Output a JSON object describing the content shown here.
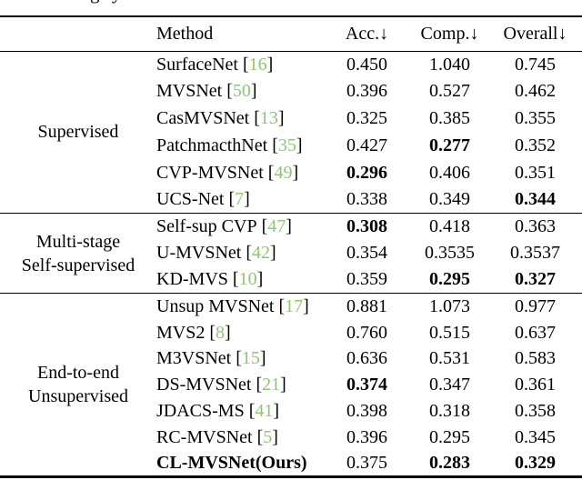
{
  "caption_fragment": {
    "char1": "g",
    "char2": "y"
  },
  "colors": {
    "citation_green": "#8fc575",
    "text_black": "#000000",
    "background": "#ffffff"
  },
  "table": {
    "symbols": {
      "bracket_open": "[",
      "bracket_close": "]"
    },
    "headers": {
      "method": "Method",
      "acc": "Acc.↓",
      "comp": "Comp.↓",
      "overall": "Overall↓"
    },
    "groups": [
      {
        "label_lines": [
          "Supervised"
        ],
        "rows": [
          {
            "method": "SurfaceNet",
            "cite": "16",
            "acc": "0.450",
            "comp": "1.040",
            "overall": "0.745"
          },
          {
            "method": "MVSNet",
            "cite": "50",
            "acc": "0.396",
            "comp": "0.527",
            "overall": "0.462"
          },
          {
            "method": "CasMVSNet",
            "cite": "13",
            "acc": "0.325",
            "comp": "0.385",
            "overall": "0.355"
          },
          {
            "method": "PatchmacthNet",
            "cite": "35",
            "acc": "0.427",
            "comp": "0.277",
            "overall": "0.352"
          },
          {
            "method": "CVP-MVSNet",
            "cite": "49",
            "acc": "0.296",
            "comp": "0.406",
            "overall": "0.351"
          },
          {
            "method": "UCS-Net",
            "cite": "7",
            "acc": "0.338",
            "comp": "0.349",
            "overall": "0.344"
          }
        ]
      },
      {
        "label_lines": [
          "Multi-stage",
          "Self-supervised"
        ],
        "rows": [
          {
            "method": "Self-sup CVP",
            "cite": "47",
            "acc": "0.308",
            "comp": "0.418",
            "overall": "0.363"
          },
          {
            "method": "U-MVSNet",
            "cite": "42",
            "acc": "0.354",
            "comp": "0.3535",
            "overall": "0.3537"
          },
          {
            "method": "KD-MVS",
            "cite": "10",
            "acc": "0.359",
            "comp": "0.295",
            "overall": "0.327"
          }
        ]
      },
      {
        "label_lines": [
          "End-to-end",
          "Unsupervised"
        ],
        "rows": [
          {
            "method": "Unsup MVSNet",
            "cite": "17",
            "acc": "0.881",
            "comp": "1.073",
            "overall": "0.977"
          },
          {
            "method": "MVS2",
            "cite": "8",
            "acc": "0.760",
            "comp": "0.515",
            "overall": "0.637"
          },
          {
            "method": "M3VSNet",
            "cite": "15",
            "acc": "0.636",
            "comp": "0.531",
            "overall": "0.583"
          },
          {
            "method": "DS-MVSNet",
            "cite": "21",
            "acc": "0.374",
            "comp": "0.347",
            "overall": "0.361"
          },
          {
            "method": "JDACS-MS",
            "cite": "41",
            "acc": "0.398",
            "comp": "0.318",
            "overall": "0.358"
          },
          {
            "method": "RC-MVSNet",
            "cite": "5",
            "acc": "0.396",
            "comp": "0.295",
            "overall": "0.345"
          },
          {
            "method": "CL-MVSNet(Ours)",
            "cite": null,
            "acc": "0.375",
            "comp": "0.283",
            "overall": "0.329"
          }
        ]
      }
    ]
  }
}
